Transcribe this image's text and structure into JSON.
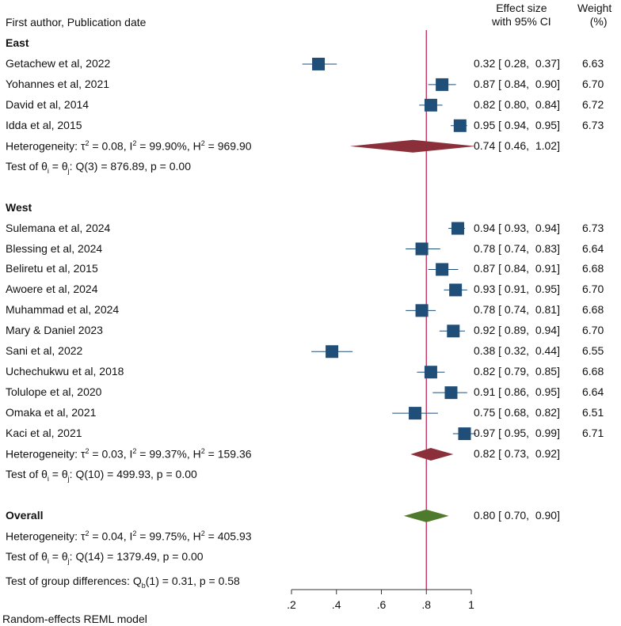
{
  "header": {
    "study_col": "First author, Publication date",
    "effect_col_line1": "Effect size",
    "effect_col_line2": "with 95% CI",
    "weight_col_line1": "Weight",
    "weight_col_line2": "(%)"
  },
  "footer": {
    "model_note": "Random-effects REML model"
  },
  "colors": {
    "study_marker": "#1f4e79",
    "subgroup_diamond": "#8b2f3a",
    "overall_diamond": "#4e7a2b",
    "reference_line": "#c0245a"
  },
  "chart_data": {
    "type": "forest",
    "xlim": [
      0.2,
      1.0
    ],
    "xticks": [
      0.2,
      0.4,
      0.6,
      0.8,
      1.0
    ],
    "xtick_labels": [
      ".2",
      ".4",
      ".6",
      ".8",
      "1"
    ],
    "reference_value": 0.8,
    "subgroups": [
      {
        "name": "East",
        "studies": [
          {
            "label": "Getachew et al, 2022",
            "es": 0.32,
            "lo": 0.28,
            "hi": 0.37,
            "es_text": "0.32 [ 0.28,  0.37]",
            "weight": "6.63"
          },
          {
            "label": "Yohannes et al, 2021",
            "es": 0.87,
            "lo": 0.84,
            "hi": 0.9,
            "es_text": "0.87 [ 0.84,  0.90]",
            "weight": "6.70"
          },
          {
            "label": "David et al, 2014",
            "es": 0.82,
            "lo": 0.8,
            "hi": 0.84,
            "es_text": "0.82 [ 0.80,  0.84]",
            "weight": "6.72"
          },
          {
            "label": "Idda et al, 2015",
            "es": 0.95,
            "lo": 0.94,
            "hi": 0.95,
            "es_text": "0.95 [ 0.94,  0.95]",
            "weight": "6.73"
          }
        ],
        "pooled": {
          "es": 0.74,
          "lo": 0.46,
          "hi": 1.02,
          "es_text": "0.74 [ 0.46,  1.02]"
        },
        "het_tau2": "0.08",
        "het_I2": "99.90%",
        "het_H2": "969.90",
        "test_stat": "Q(3) = 876.89, p = 0.00"
      },
      {
        "name": "West",
        "studies": [
          {
            "label": "Sulemana et al, 2024",
            "es": 0.94,
            "lo": 0.93,
            "hi": 0.94,
            "es_text": "0.94 [ 0.93,  0.94]",
            "weight": "6.73"
          },
          {
            "label": "Blessing et al, 2024",
            "es": 0.78,
            "lo": 0.74,
            "hi": 0.83,
            "es_text": "0.78 [ 0.74,  0.83]",
            "weight": "6.64"
          },
          {
            "label": "Beliretu et al, 2015",
            "es": 0.87,
            "lo": 0.84,
            "hi": 0.91,
            "es_text": "0.87 [ 0.84,  0.91]",
            "weight": "6.68"
          },
          {
            "label": "Awoere et al, 2024",
            "es": 0.93,
            "lo": 0.91,
            "hi": 0.95,
            "es_text": "0.93 [ 0.91,  0.95]",
            "weight": "6.70"
          },
          {
            "label": "Muhammad et al, 2024",
            "es": 0.78,
            "lo": 0.74,
            "hi": 0.81,
            "es_text": "0.78 [ 0.74,  0.81]",
            "weight": "6.68"
          },
          {
            "label": "Mary & Daniel 2023",
            "es": 0.92,
            "lo": 0.89,
            "hi": 0.94,
            "es_text": "0.92 [ 0.89,  0.94]",
            "weight": "6.70"
          },
          {
            "label": "Sani et al, 2022",
            "es": 0.38,
            "lo": 0.32,
            "hi": 0.44,
            "es_text": "0.38 [ 0.32,  0.44]",
            "weight": "6.55"
          },
          {
            "label": "Uchechukwu et al, 2018",
            "es": 0.82,
            "lo": 0.79,
            "hi": 0.85,
            "es_text": "0.82 [ 0.79,  0.85]",
            "weight": "6.68"
          },
          {
            "label": "Tolulope et al, 2020",
            "es": 0.91,
            "lo": 0.86,
            "hi": 0.95,
            "es_text": "0.91 [ 0.86,  0.95]",
            "weight": "6.64"
          },
          {
            "label": "Omaka et al, 2021",
            "es": 0.75,
            "lo": 0.68,
            "hi": 0.82,
            "es_text": "0.75 [ 0.68,  0.82]",
            "weight": "6.51"
          },
          {
            "label": "Kaci et al, 2021",
            "es": 0.97,
            "lo": 0.95,
            "hi": 0.99,
            "es_text": "0.97 [ 0.95,  0.99]",
            "weight": "6.71"
          }
        ],
        "pooled": {
          "es": 0.82,
          "lo": 0.73,
          "hi": 0.92,
          "es_text": "0.82 [ 0.73,  0.92]"
        },
        "het_tau2": "0.03",
        "het_I2": "99.37%",
        "het_H2": "159.36",
        "test_stat": "Q(10) = 499.93, p = 0.00"
      }
    ],
    "overall": {
      "name": "Overall",
      "es": 0.8,
      "lo": 0.7,
      "hi": 0.9,
      "es_text": "0.80 [ 0.70,  0.90]",
      "het_tau2": "0.04",
      "het_I2": "99.75%",
      "het_H2": "405.93",
      "test_stat": "Q(14) = 1379.49, p = 0.00",
      "group_diff": "(1) = 0.31, p = 0.58"
    }
  }
}
